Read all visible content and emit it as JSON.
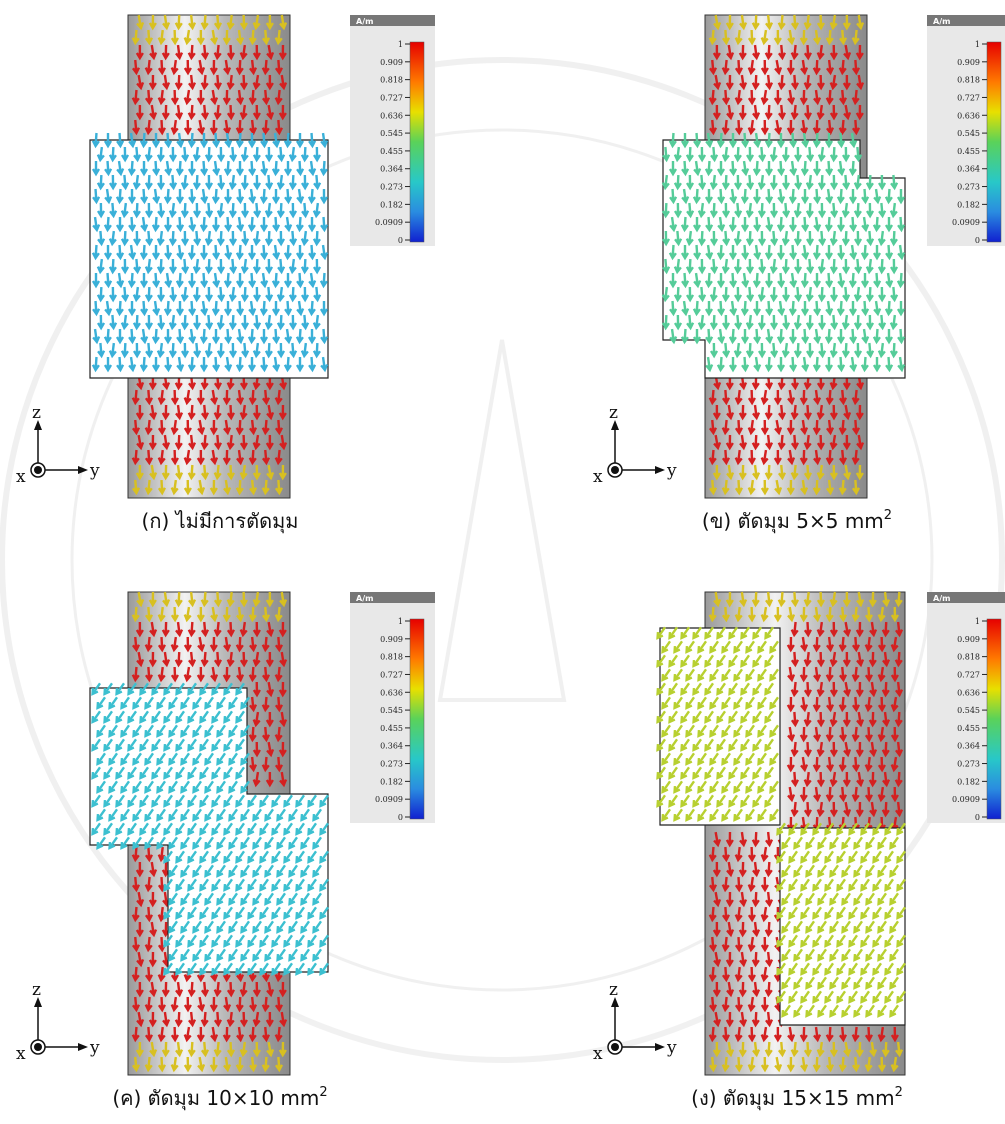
{
  "panels": [
    {
      "caption": "(ก) ไม่มีการตัดมุม",
      "colorbar": {
        "unit": "A/m",
        "ticks": [
          "1",
          "0.909",
          "0.818",
          "0.727",
          "0.636",
          "0.545",
          "0.455",
          "0.364",
          "0.273",
          "0.182",
          "0.0909",
          "0"
        ]
      },
      "axes": {
        "z": "z",
        "x": "x",
        "y": "y"
      }
    },
    {
      "caption": "(ข) ตัดมุม 5×5 mm",
      "superscript": "2",
      "colorbar": {
        "unit": "A/m",
        "ticks": [
          "1",
          "0.909",
          "0.818",
          "0.727",
          "0.636",
          "0.545",
          "0.455",
          "0.364",
          "0.273",
          "0.182",
          "0.0909",
          "0"
        ]
      },
      "axes": {
        "z": "z",
        "x": "x",
        "y": "y"
      }
    },
    {
      "caption": "(ค) ตัดมุม 10×10 mm",
      "superscript": "2",
      "colorbar": {
        "unit": "A/m",
        "ticks": [
          "1",
          "0.909",
          "0.818",
          "0.727",
          "0.636",
          "0.545",
          "0.455",
          "0.364",
          "0.273",
          "0.182",
          "0.0909",
          "0"
        ]
      },
      "axes": {
        "z": "z",
        "x": "x",
        "y": "y"
      }
    },
    {
      "caption": "(ง) ตัดมุม 15×15 mm",
      "superscript": "2",
      "colorbar": {
        "unit": "A/m",
        "ticks": [
          "1",
          "0.909",
          "0.818",
          "0.727",
          "0.636",
          "0.545",
          "0.455",
          "0.364",
          "0.273",
          "0.182",
          "0.0909",
          "0"
        ]
      },
      "axes": {
        "z": "z",
        "x": "x",
        "y": "y"
      }
    }
  ]
}
